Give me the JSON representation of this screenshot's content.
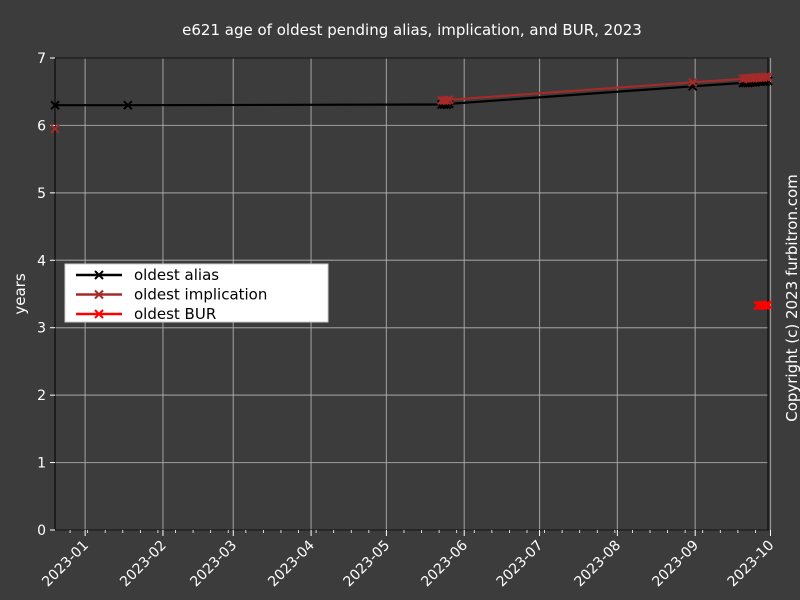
{
  "chart_data": {
    "type": "line",
    "title": "e621 age of oldest pending alias, implication, and BUR, 2023",
    "xlabel": "",
    "ylabel": "years",
    "copyright": "Copyright (c) 2023 furbitron.com",
    "xlim": [
      "2022-12-20",
      "2023-09-30"
    ],
    "ylim": [
      0,
      7
    ],
    "x_ticks": [
      "2023-01",
      "2023-02",
      "2023-03",
      "2023-04",
      "2023-05",
      "2023-06",
      "2023-07",
      "2023-08",
      "2023-09",
      "2023-10"
    ],
    "y_ticks": [
      "0",
      "1",
      "2",
      "3",
      "4",
      "5",
      "6",
      "7"
    ],
    "grid": true,
    "legend_position": "center-left",
    "background_color": "#3c3c3c",
    "series": [
      {
        "name": "oldest alias",
        "color": "#000000",
        "marker": "x",
        "points": [
          [
            "2022-12-20",
            6.3
          ],
          [
            "2023-01-18",
            6.3
          ],
          [
            "2023-05-23",
            6.31
          ],
          [
            "2023-05-24",
            6.31
          ],
          [
            "2023-05-25",
            6.31
          ],
          [
            "2023-05-26",
            6.32
          ],
          [
            "2023-08-31",
            6.58
          ],
          [
            "2023-09-20",
            6.63
          ],
          [
            "2023-09-21",
            6.63
          ],
          [
            "2023-09-22",
            6.63
          ],
          [
            "2023-09-23",
            6.64
          ],
          [
            "2023-09-24",
            6.64
          ],
          [
            "2023-09-25",
            6.64
          ],
          [
            "2023-09-26",
            6.65
          ],
          [
            "2023-09-27",
            6.65
          ],
          [
            "2023-09-28",
            6.65
          ],
          [
            "2023-09-29",
            6.65
          ],
          [
            "2023-09-30",
            6.66
          ]
        ]
      },
      {
        "name": "oldest implication",
        "color": "#a52a2a",
        "marker": "x",
        "points": [
          [
            "2022-12-20",
            5.95
          ],
          null,
          [
            "2023-05-23",
            6.37
          ],
          [
            "2023-05-24",
            6.37
          ],
          [
            "2023-05-25",
            6.37
          ],
          [
            "2023-05-26",
            6.38
          ],
          [
            "2023-08-31",
            6.64
          ],
          [
            "2023-09-20",
            6.69
          ],
          [
            "2023-09-21",
            6.7
          ],
          [
            "2023-09-22",
            6.7
          ],
          [
            "2023-09-23",
            6.7
          ],
          [
            "2023-09-24",
            6.7
          ],
          [
            "2023-09-25",
            6.71
          ],
          [
            "2023-09-26",
            6.71
          ],
          [
            "2023-09-27",
            6.71
          ],
          [
            "2023-09-28",
            6.71
          ],
          [
            "2023-09-29",
            6.72
          ],
          [
            "2023-09-30",
            6.72
          ]
        ]
      },
      {
        "name": "oldest BUR",
        "color": "#ff0000",
        "marker": "x",
        "points": [
          [
            "2023-09-26",
            3.33
          ],
          [
            "2023-09-27",
            3.33
          ],
          [
            "2023-09-28",
            3.33
          ],
          [
            "2023-09-29",
            3.33
          ],
          [
            "2023-09-30",
            3.34
          ]
        ]
      }
    ]
  }
}
